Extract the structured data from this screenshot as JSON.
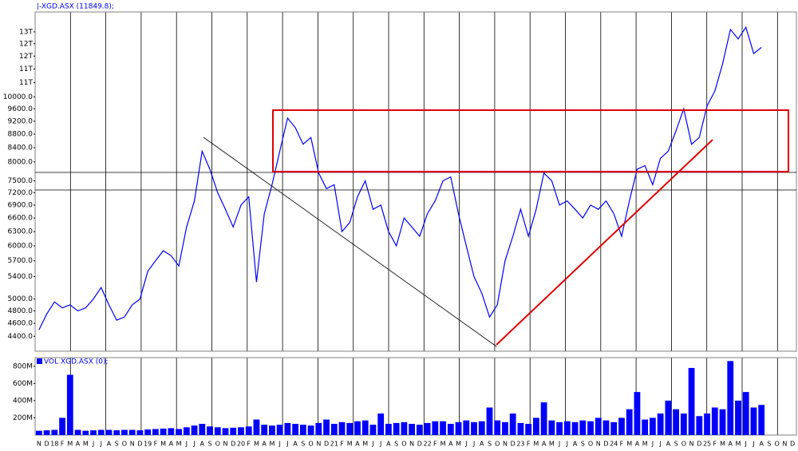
{
  "chart_data": [
    {
      "type": "line",
      "title": "|-XGD.ASX (11849.8);",
      "log_scale": true,
      "color": "#0000ff",
      "grid": true,
      "ylim": [
        4180,
        13380
      ],
      "yticks": [
        {
          "value": 4400,
          "label": "4400.0"
        },
        {
          "value": 4600,
          "label": "4600.0"
        },
        {
          "value": 4800,
          "label": "4800.0"
        },
        {
          "value": 5000,
          "label": "5000.0"
        },
        {
          "value": 5400,
          "label": "5400.0"
        },
        {
          "value": 5700,
          "label": "5700.0"
        },
        {
          "value": 6000,
          "label": "6000.0"
        },
        {
          "value": 6300,
          "label": "6300.0"
        },
        {
          "value": 6600,
          "label": "6600.0"
        },
        {
          "value": 6900,
          "label": "6900.0"
        },
        {
          "value": 7200,
          "label": "7200.0"
        },
        {
          "value": 7500,
          "label": "7500.0"
        },
        {
          "value": 8000,
          "label": "8000.0"
        },
        {
          "value": 8400,
          "label": "8400.0"
        },
        {
          "value": 8800,
          "label": "8800.0"
        },
        {
          "value": 9200,
          "label": "9200.0"
        },
        {
          "value": 9600,
          "label": "9600.0"
        },
        {
          "value": 10000,
          "label": "10000.0"
        },
        {
          "value": 10500,
          "label": "11T"
        },
        {
          "value": 11000,
          "label": "11T"
        },
        {
          "value": 11500,
          "label": "12T"
        },
        {
          "value": 12000,
          "label": "12T"
        },
        {
          "value": 12500,
          "label": "13T"
        }
      ],
      "values": [
        4500,
        4750,
        4950,
        4850,
        4900,
        4800,
        4850,
        5000,
        5200,
        4900,
        4650,
        4700,
        4900,
        5000,
        5500,
        5700,
        5900,
        5800,
        5600,
        6400,
        7000,
        8300,
        7800,
        7200,
        6800,
        6400,
        6900,
        7100,
        5300,
        6700,
        7400,
        8300,
        9300,
        9000,
        8500,
        8700,
        7700,
        7300,
        7400,
        6300,
        6500,
        7100,
        7500,
        6800,
        6900,
        6300,
        6000,
        6600,
        6400,
        6200,
        6700,
        7000,
        7500,
        7600,
        6700,
        6000,
        5400,
        5100,
        4700,
        4900,
        5700,
        6200,
        6800,
        6200,
        6800,
        7700,
        7500,
        6900,
        7000,
        6800,
        6600,
        6900,
        6800,
        7000,
        6700,
        6200,
        7000,
        7800,
        7900,
        7400,
        8100,
        8300,
        8900,
        9600,
        8500,
        8700,
        9700,
        10200,
        11200,
        12600,
        12200,
        12700,
        11600,
        11850,
        null,
        null,
        null,
        null
      ]
    },
    {
      "type": "bar",
      "legend": "VOL XGD.ASX (0);",
      "color": "#0000ff",
      "ylim": [
        0,
        900000000
      ],
      "yticks": [
        {
          "value": 200000000,
          "label": "200M"
        },
        {
          "value": 400000000,
          "label": "400M"
        },
        {
          "value": 600000000,
          "label": "600M"
        },
        {
          "value": 800000000,
          "label": "800M"
        }
      ],
      "categories": [
        "N",
        "D",
        "18",
        "F",
        "M",
        "A",
        "M",
        "J",
        "J",
        "A",
        "S",
        "O",
        "N",
        "D",
        "19",
        "F",
        "M",
        "A",
        "M",
        "J",
        "J",
        "A",
        "S",
        "O",
        "N",
        "D",
        "20",
        "F",
        "M",
        "A",
        "M",
        "J",
        "J",
        "A",
        "S",
        "O",
        "N",
        "D",
        "21",
        "F",
        "M",
        "A",
        "M",
        "J",
        "J",
        "A",
        "S",
        "O",
        "N",
        "D",
        "22",
        "F",
        "M",
        "A",
        "M",
        "J",
        "J",
        "A",
        "S",
        "O",
        "N",
        "D",
        "23",
        "F",
        "M",
        "A",
        "M",
        "J",
        "J",
        "A",
        "S",
        "O",
        "N",
        "D",
        "24",
        "F",
        "M",
        "A",
        "M",
        "J",
        "J",
        "A",
        "S",
        "O",
        "N",
        "D",
        "25",
        "F",
        "M",
        "A",
        "M",
        "J",
        "J",
        "A",
        "S",
        "O",
        "N",
        "D"
      ],
      "values": [
        50000000,
        55000000,
        60000000,
        200000000,
        700000000,
        60000000,
        50000000,
        55000000,
        60000000,
        60000000,
        55000000,
        60000000,
        60000000,
        55000000,
        65000000,
        70000000,
        75000000,
        80000000,
        70000000,
        90000000,
        110000000,
        130000000,
        100000000,
        90000000,
        80000000,
        85000000,
        90000000,
        100000000,
        180000000,
        120000000,
        110000000,
        120000000,
        140000000,
        130000000,
        120000000,
        110000000,
        140000000,
        180000000,
        130000000,
        150000000,
        140000000,
        160000000,
        170000000,
        120000000,
        250000000,
        130000000,
        140000000,
        150000000,
        130000000,
        120000000,
        140000000,
        160000000,
        160000000,
        130000000,
        150000000,
        170000000,
        150000000,
        160000000,
        320000000,
        170000000,
        150000000,
        250000000,
        140000000,
        130000000,
        200000000,
        380000000,
        170000000,
        150000000,
        160000000,
        150000000,
        170000000,
        160000000,
        200000000,
        170000000,
        150000000,
        200000000,
        300000000,
        500000000,
        180000000,
        200000000,
        250000000,
        400000000,
        300000000,
        250000000,
        780000000,
        220000000,
        250000000,
        320000000,
        300000000,
        860000000,
        400000000,
        500000000,
        320000000,
        350000000,
        null,
        null,
        null,
        null
      ]
    }
  ]
}
